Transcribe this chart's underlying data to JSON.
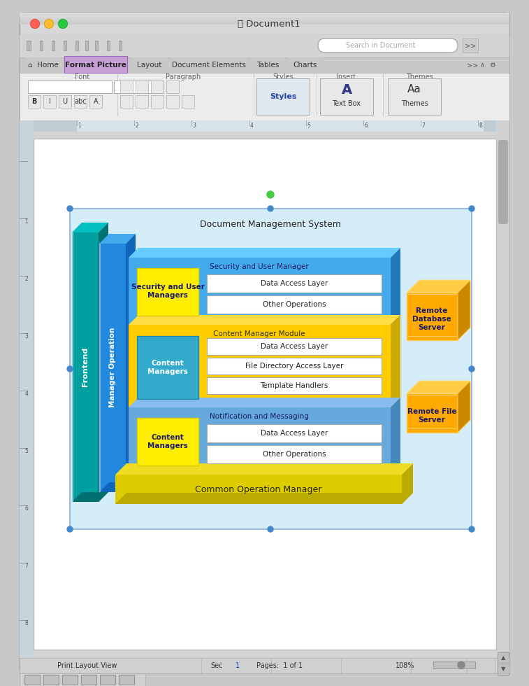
{
  "fig_width": 7.57,
  "fig_height": 9.8,
  "bg_outer": "#c8c8c8",
  "window_bg": "#e4e4e4",
  "titlebar_bg": "#d0d0d0",
  "toolbar_bg": "#d8d8d8",
  "ribbon_bg": "#e8e8e8",
  "ribbon_tab_active_bg": "#c8a8d8",
  "ruler_bg": "#d4dce4",
  "page_bg": "#f0f0f0",
  "paper_bg": "#ffffff",
  "statusbar_bg": "#d0d0d0",
  "diagram_outer_bg": "#ddeef8",
  "teal_face": "#00a0a0",
  "teal_top": "#00b8b8",
  "teal_side": "#007878",
  "blue3d_face": "#2288dd",
  "blue3d_top": "#44aaee",
  "blue3d_side": "#1166bb",
  "sec_face": "#44aaee",
  "sec_top": "#66bbff",
  "sec_side": "#2277cc",
  "content_face": "#ffcc00",
  "content_top": "#ffdd44",
  "content_side": "#ccaa00",
  "notif_face": "#66aadd",
  "notif_top": "#88bbee",
  "notif_side": "#4488bb",
  "yellow_box": "#ffee00",
  "blue_box": "#33aacc",
  "white_box": "#ffffff",
  "common_face": "#ddcc00",
  "common_top": "#eedd22",
  "common_side": "#bbaa00",
  "cube_face": "#ffaa00",
  "cube_top": "#ffcc44",
  "cube_side": "#cc8800",
  "text_dark": "#1a1a6e",
  "text_black": "#111111",
  "text_white": "#ffffff",
  "text_gray": "#444444",
  "title_text": "Document1",
  "diagram_title": "Document Management System",
  "sec_title": "Security and User Manager",
  "content_title": "Content Manager Module",
  "notif_title": "Notification and Messaging",
  "common_title": "Common Operation Manager",
  "frontend_label": "Frontend",
  "manager_op_label": "Manager Operation",
  "remote_db_label": "Remote\nDatabase\nServer",
  "remote_file_label": "Remote File\nServer",
  "sec_left_label": "Security and User\nManagers",
  "content_left_label": "Content\nManagers",
  "notif_left_label": "Content\nManagers",
  "data_access_label": "Data Access Layer",
  "other_ops_label": "Other Operations",
  "file_dir_label": "File Directory Access Layer",
  "template_label": "Template Handlers"
}
